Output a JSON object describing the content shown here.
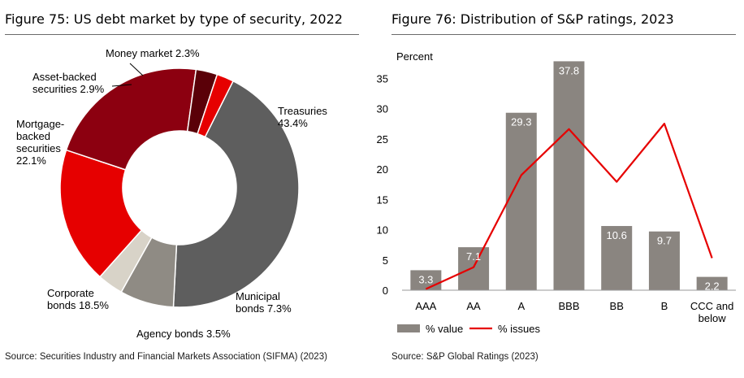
{
  "fig75": {
    "title": "Figure 75: US debt market by type of security, 2022",
    "source": "Source: Securities Industry and Financial Markets Association (SIFMA) (2023)"
  },
  "fig76": {
    "title": "Figure 76: Distribution of S&P ratings, 2023",
    "source": "Source: S&P Global Ratings (2023)"
  },
  "chart_data": [
    {
      "type": "pie",
      "donut": true,
      "title": "Figure 75: US debt market by type of security, 2022",
      "categories": [
        "Treasuries",
        "Municipal bonds",
        "Agency bonds",
        "Corporate bonds",
        "Mortgage-backed securities",
        "Asset-backed securities",
        "Money market"
      ],
      "values": [
        43.4,
        7.3,
        3.5,
        18.5,
        22.1,
        2.9,
        2.3
      ],
      "labels": [
        [
          "Treasuries",
          "43.4%"
        ],
        [
          "Municipal",
          "bonds 7.3%"
        ],
        [
          "Agency bonds 3.5%"
        ],
        [
          "Corporate",
          "bonds 18.5%"
        ],
        [
          "Mortgage-",
          "backed",
          "securities",
          "22.1%"
        ],
        [
          "Asset-backed",
          "securities 2.9%"
        ],
        [
          "Money market 2.3%"
        ]
      ],
      "colors": [
        "#5e5e5e",
        "#8f8b84",
        "#d8d3c8",
        "#e60000",
        "#8c0010",
        "#5a0008",
        "#e60000"
      ]
    },
    {
      "type": "bar",
      "title": "Figure 76: Distribution of S&P ratings, 2023",
      "ylabel": "Percent",
      "ylim": [
        0,
        40
      ],
      "yticks": [
        0,
        5,
        10,
        15,
        20,
        25,
        30,
        35
      ],
      "categories": [
        "AAA",
        "AA",
        "A",
        "BBB",
        "BB",
        "B",
        "CCC and below"
      ],
      "category_lines": [
        [
          "AAA"
        ],
        [
          "AA"
        ],
        [
          "A"
        ],
        [
          "BBB"
        ],
        [
          "BB"
        ],
        [
          "B"
        ],
        [
          "CCC and",
          "below"
        ]
      ],
      "series": [
        {
          "name": "% value",
          "kind": "bar",
          "color": "#8a8580",
          "values": [
            3.3,
            7.1,
            29.3,
            37.8,
            10.6,
            9.7,
            2.2
          ]
        },
        {
          "name": "% issues",
          "kind": "line",
          "color": "#e60000",
          "values": [
            0.2,
            3.8,
            19.0,
            26.6,
            17.9,
            27.5,
            5.3
          ]
        }
      ],
      "legend": "bottom"
    }
  ]
}
